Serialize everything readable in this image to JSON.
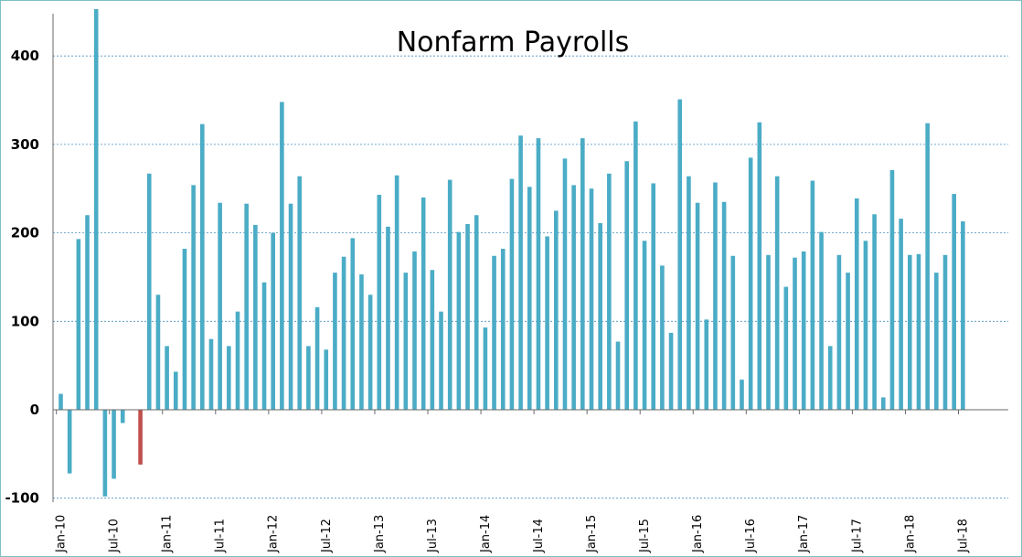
{
  "chart_data": {
    "type": "bar",
    "title": "Nonfarm Payrolls",
    "xlabel": "",
    "ylabel": "",
    "ylim": [
      -100,
      450
    ],
    "yticks": [
      -100,
      0,
      100,
      200,
      300,
      400
    ],
    "grid": "horizontal-dashed",
    "legend": "none",
    "bar_color": "#4bacc6",
    "highlight_color": "#c0504d",
    "highlight_index": 9,
    "x_tick_labels": [
      "Jan-10",
      "Jul-10",
      "Jan-11",
      "Jul-11",
      "Jan-12",
      "Jul-12",
      "Jan-13",
      "Jul-13",
      "Jan-14",
      "Jul-14",
      "Jan-15",
      "Jul-15",
      "Jan-16",
      "Jul-16",
      "Jan-17",
      "Jul-17",
      "Jan-18",
      "Jul-18"
    ],
    "x_tick_every": 6,
    "start": "Jan-10",
    "values": [
      18,
      -72,
      193,
      220,
      453,
      -98,
      -78,
      -15,
      0,
      -62,
      267,
      130,
      72,
      43,
      182,
      254,
      323,
      80,
      234,
      72,
      111,
      233,
      209,
      144,
      200,
      348,
      233,
      264,
      72,
      116,
      68,
      155,
      173,
      194,
      153,
      130,
      243,
      207,
      265,
      155,
      179,
      240,
      158,
      111,
      260,
      201,
      210,
      220,
      93,
      174,
      182,
      261,
      310,
      252,
      307,
      196,
      225,
      284,
      254,
      307,
      250,
      211,
      267,
      77,
      281,
      326,
      191,
      256,
      163,
      87,
      351,
      264,
      234,
      102,
      257,
      235,
      174,
      34,
      285,
      325,
      175,
      264,
      139,
      172,
      179,
      259,
      201,
      72,
      175,
      155,
      239,
      191,
      221,
      14,
      271,
      216,
      175,
      176,
      324,
      155,
      175,
      244,
      213
    ]
  }
}
